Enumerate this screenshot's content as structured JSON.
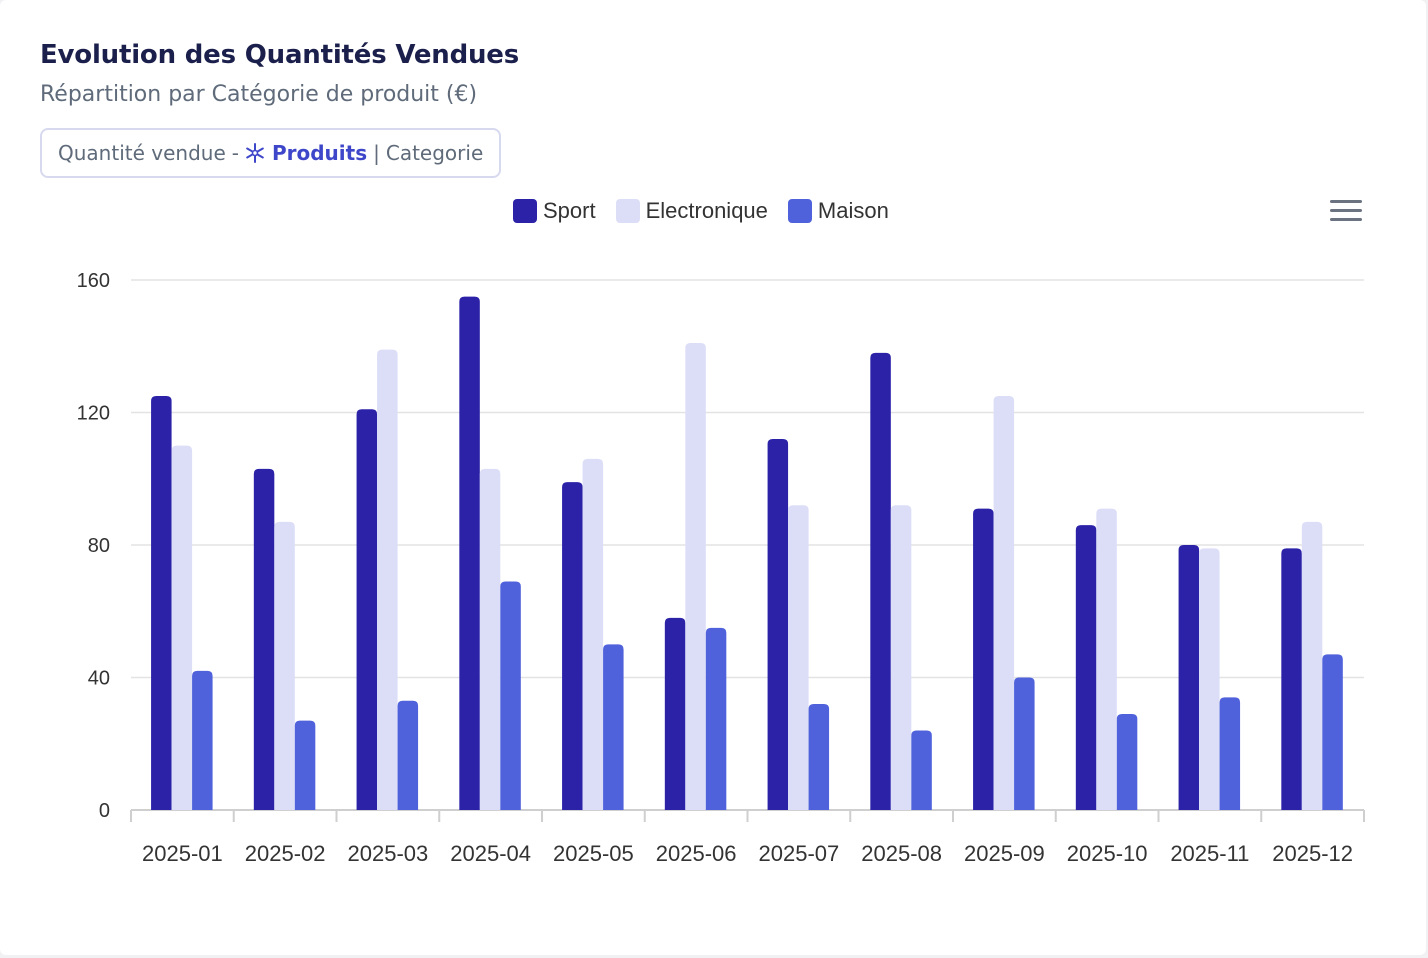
{
  "header": {
    "title": "Evolution des Quantités Vendues",
    "subtitle": "Répartition par Catégorie de produit (€)"
  },
  "filter_tag": {
    "measure": "Quantité vendue",
    "separator": "-",
    "dataset": "Produits",
    "dimension_separator": "|",
    "dimension": "Categorie"
  },
  "icons": {
    "dataset": "snowflake-icon",
    "menu": "hamburger-menu-icon"
  },
  "colors": {
    "Sport": "#2b22a8",
    "Electronique": "#dcdef8",
    "Maison": "#5062db",
    "grid": "#e3e3e3",
    "axis": "#cfcfcf",
    "tick_text": "#333333"
  },
  "chart_data": {
    "type": "bar",
    "title": "Evolution des Quantités Vendues",
    "subtitle": "Répartition par Catégorie de produit (€)",
    "categories": [
      "2025-01",
      "2025-02",
      "2025-03",
      "2025-04",
      "2025-05",
      "2025-06",
      "2025-07",
      "2025-08",
      "2025-09",
      "2025-10",
      "2025-11",
      "2025-12"
    ],
    "series": [
      {
        "name": "Sport",
        "values": [
          125,
          103,
          121,
          155,
          99,
          58,
          112,
          138,
          91,
          86,
          80,
          79
        ]
      },
      {
        "name": "Electronique",
        "values": [
          110,
          87,
          139,
          103,
          106,
          141,
          92,
          92,
          125,
          91,
          79,
          87
        ]
      },
      {
        "name": "Maison",
        "values": [
          42,
          27,
          33,
          69,
          50,
          55,
          32,
          24,
          40,
          29,
          34,
          47
        ]
      }
    ],
    "xlabel": "",
    "ylabel": "",
    "ylim": [
      0,
      160
    ],
    "yticks": [
      0,
      40,
      80,
      120,
      160
    ],
    "grid": true,
    "legend_position": "top-center"
  }
}
